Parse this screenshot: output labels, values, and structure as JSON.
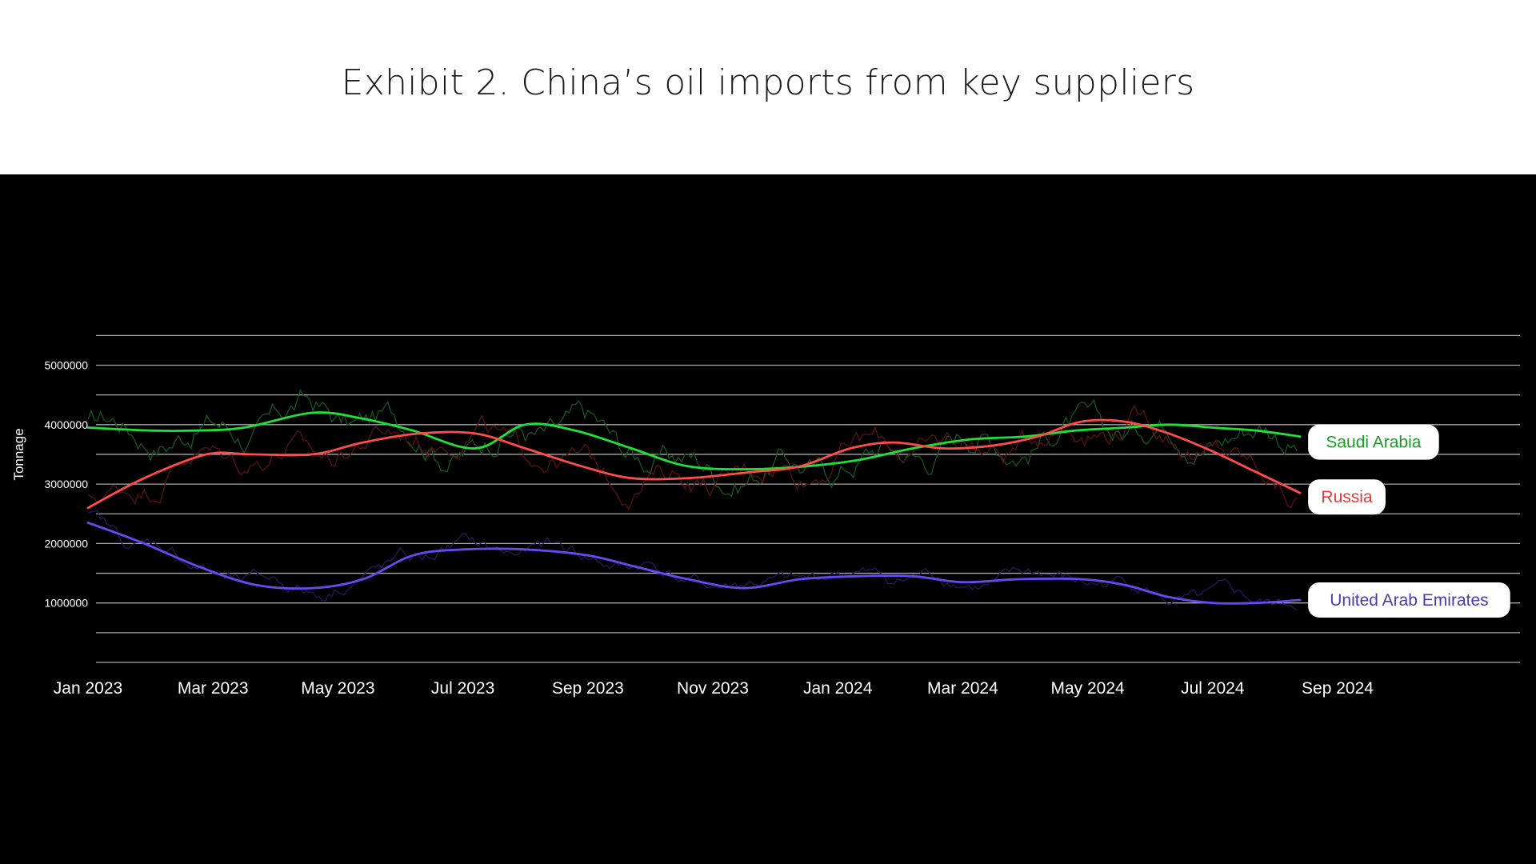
{
  "title": "Exhibit 2. China’s oil imports from key suppliers",
  "chart_data": {
    "type": "line",
    "title": "Exhibit 2. China’s oil imports from key suppliers",
    "ylabel": "Tonnage",
    "xlabel": "",
    "x_tick_labels": [
      "Jan 2023",
      "Mar 2023",
      "May 2023",
      "Jul 2023",
      "Sep 2023",
      "Nov 2023",
      "Jan  2024",
      "Mar 2024",
      "May 2024",
      "Jul 2024",
      "Sep 2024"
    ],
    "x_tick_months": [
      0,
      2,
      4,
      6,
      8,
      10,
      12,
      14,
      16,
      18,
      20
    ],
    "y_tick_labels": [
      "1000000",
      "2000000",
      "3000000",
      "4000000",
      "5000000"
    ],
    "y_ticks": [
      1000000,
      2000000,
      3000000,
      4000000,
      5000000
    ],
    "ylim": [
      0,
      5500000
    ],
    "xlim_months": [
      0,
      20
    ],
    "grid": true,
    "background": "#000000",
    "series": [
      {
        "name": "Saudi Arabia",
        "color": "#1fe038",
        "raw_color": "#17561e",
        "label_color": "#1f9a2a",
        "x_months": [
          0,
          1,
          1.7,
          2.5,
          3.6,
          4.4,
          5.2,
          6.2,
          7,
          7.8,
          8.7,
          9.6,
          10.6,
          11.5,
          12.3,
          13.2,
          14.1,
          15,
          15.8,
          16.6,
          17.3,
          18,
          18.7,
          19.4
        ],
        "values": [
          3950000,
          3900000,
          3900000,
          3950000,
          4200000,
          4100000,
          3900000,
          3600000,
          4000000,
          3900000,
          3600000,
          3300000,
          3250000,
          3300000,
          3400000,
          3600000,
          3750000,
          3800000,
          3900000,
          3950000,
          4000000,
          3950000,
          3900000,
          3800000
        ]
      },
      {
        "name": "Russia",
        "color": "#ff4b4b",
        "raw_color": "#5a1212",
        "label_color": "#e23b3b",
        "x_months": [
          0,
          0.9,
          1.9,
          2.6,
          3.6,
          4.4,
          5.3,
          6.2,
          7,
          7.9,
          8.7,
          9.6,
          10.6,
          11.4,
          12.2,
          12.9,
          13.7,
          14.5,
          15.2,
          15.9,
          16.6,
          17.3,
          18,
          18.7,
          19.4
        ],
        "values": [
          2600000,
          3100000,
          3500000,
          3500000,
          3500000,
          3700000,
          3850000,
          3850000,
          3600000,
          3300000,
          3100000,
          3100000,
          3200000,
          3300000,
          3600000,
          3700000,
          3600000,
          3650000,
          3800000,
          4050000,
          4050000,
          3850000,
          3550000,
          3200000,
          2850000
        ]
      },
      {
        "name": "United Arab Emirates",
        "color": "#6a48f0",
        "raw_color": "#231a5a",
        "label_color": "#4a3bb0",
        "x_months": [
          0,
          0.9,
          1.8,
          2.7,
          3.6,
          4.4,
          5.2,
          6,
          7,
          8,
          8.8,
          9.6,
          10.5,
          11.4,
          12.3,
          13.2,
          14,
          14.9,
          15.9,
          16.6,
          17.3,
          18,
          18.7,
          19.4
        ],
        "values": [
          2350000,
          2000000,
          1600000,
          1300000,
          1250000,
          1400000,
          1800000,
          1900000,
          1900000,
          1800000,
          1600000,
          1400000,
          1250000,
          1400000,
          1450000,
          1450000,
          1350000,
          1400000,
          1400000,
          1300000,
          1100000,
          1000000,
          1000000,
          1050000
        ]
      }
    ]
  }
}
